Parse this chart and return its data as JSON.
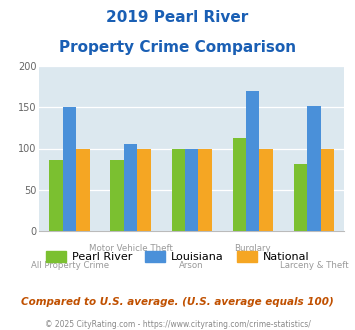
{
  "title_line1": "2019 Pearl River",
  "title_line2": "Property Crime Comparison",
  "categories": [
    "All Property Crime",
    "Motor Vehicle Theft",
    "Arson",
    "Burglary",
    "Larceny & Theft"
  ],
  "pearl_river": [
    86,
    86,
    100,
    113,
    81
  ],
  "louisiana": [
    150,
    105,
    100,
    170,
    152
  ],
  "national": [
    100,
    100,
    100,
    100,
    100
  ],
  "color_pearl": "#7bc030",
  "color_louisiana": "#4a90d9",
  "color_national": "#f5a623",
  "ylim": [
    0,
    200
  ],
  "yticks": [
    0,
    50,
    100,
    150,
    200
  ],
  "bg_color": "#dce8ef",
  "title_color": "#1a5fb4",
  "footer_text": "Compared to U.S. average. (U.S. average equals 100)",
  "copyright_text": "© 2025 CityRating.com - https://www.cityrating.com/crime-statistics/",
  "footer_color": "#c05000",
  "copyright_color": "#888888",
  "legend_labels": [
    "Pearl River",
    "Louisiana",
    "National"
  ],
  "bar_width": 0.22
}
